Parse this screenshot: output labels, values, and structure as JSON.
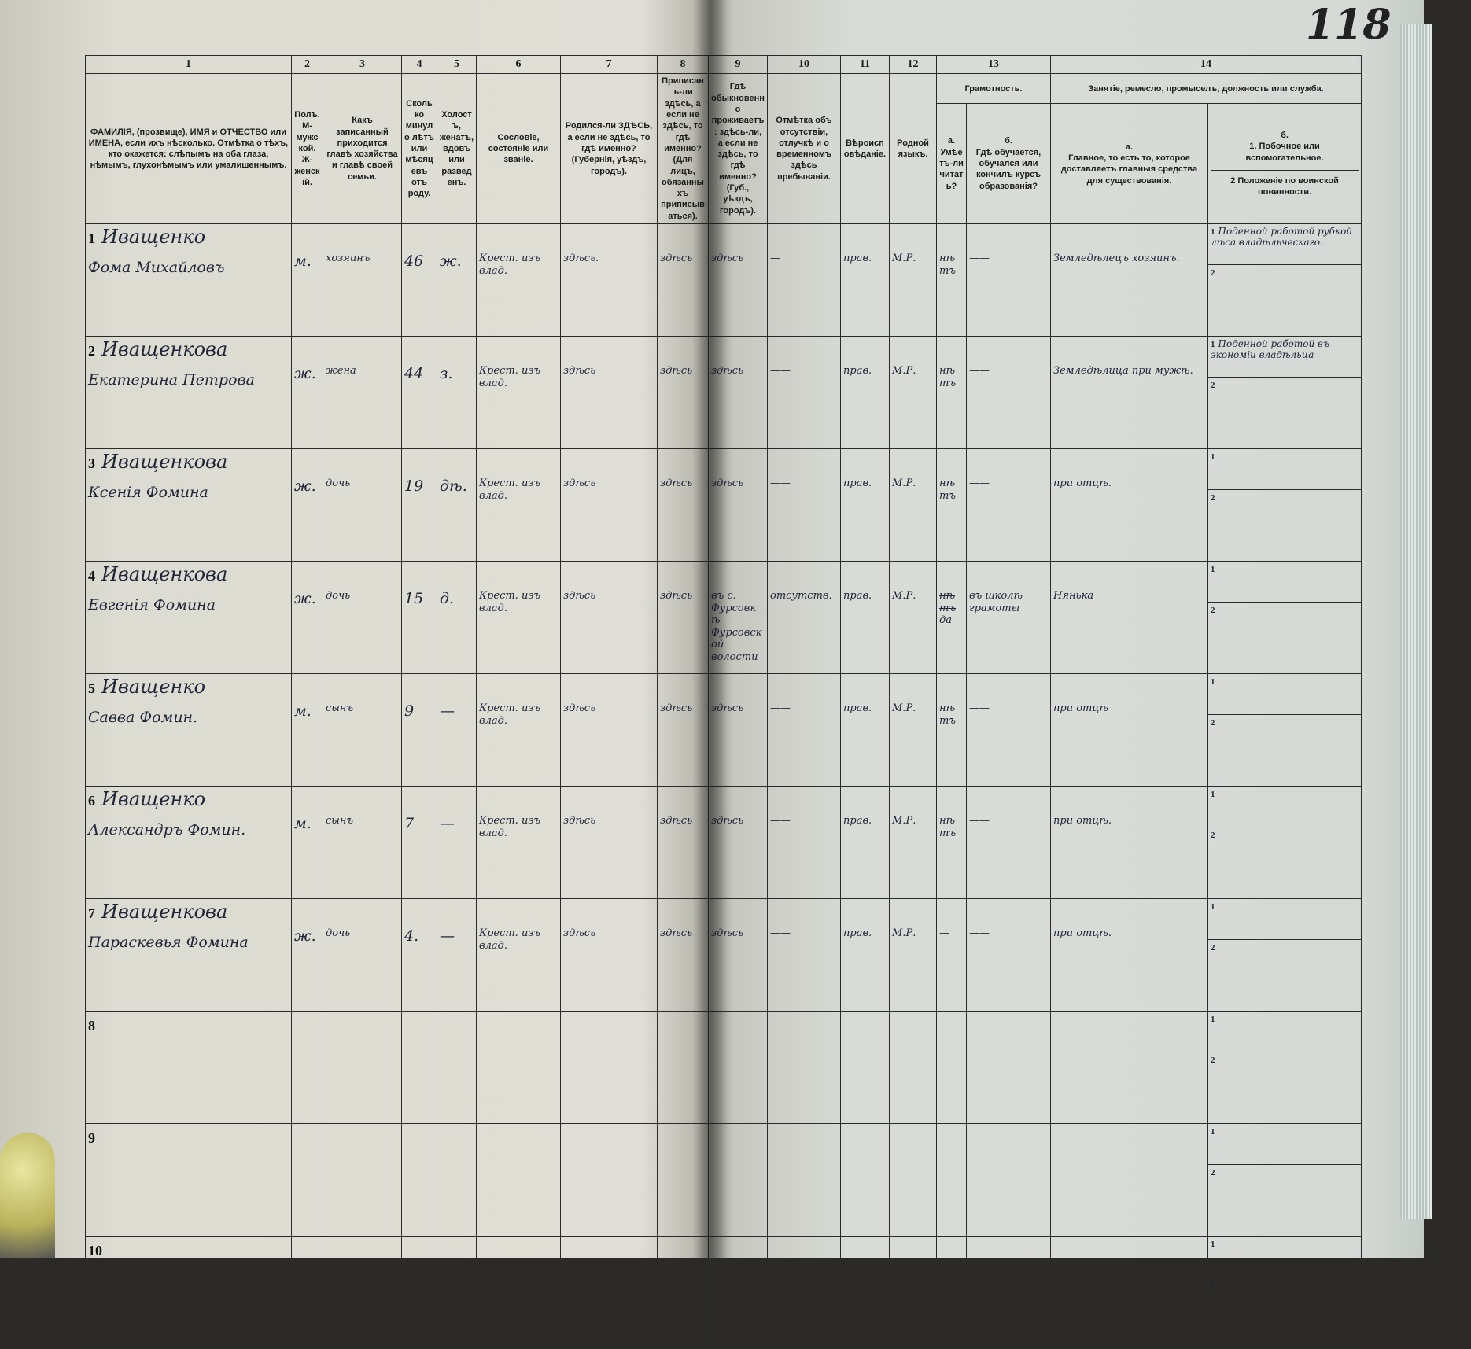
{
  "page_number": "118",
  "colors": {
    "paper": "#deded6",
    "ink": "#20263a",
    "print": "#1d1d1d"
  },
  "columns": [
    {
      "num": "1",
      "label": "ФАМИЛІЯ, (прозвище), ИМЯ и ОТЧЕСТВО или ИМЕНА, если ихъ нѣсколько. Отмѣтка о тѣхъ, кто окажется: слѣпымъ на оба глаза, нѣмымъ, глухонѣмымъ или умалишеннымъ."
    },
    {
      "num": "2",
      "label": "Полъ. М-мужской. Ж-женскій."
    },
    {
      "num": "3",
      "label": "Какъ записанный приходится главѣ хозяйства и главѣ своей семьи."
    },
    {
      "num": "4",
      "label": "Сколько минуло лѣтъ или мѣсяцевъ отъ роду."
    },
    {
      "num": "5",
      "label": "Холостъ, женатъ, вдовъ или разведенъ."
    },
    {
      "num": "6",
      "label": "Сословіе, состояніе или званіе."
    },
    {
      "num": "7",
      "label": "Родился-ли ЗДѢСЬ, а если не здѣсь, то гдѣ именно? (Губернія, уѣздъ, городъ)."
    },
    {
      "num": "8",
      "label": "Приписанъ-ли здѣсь, а если не здѣсь, то гдѣ именно? (Для лицъ, обязанныхъ приписываться)."
    },
    {
      "num": "9",
      "label": "Гдѣ обыкновенно проживаетъ: здѣсь-ли, а если не здѣсь, то гдѣ именно? (Губ., уѣздъ, городъ)."
    },
    {
      "num": "10",
      "label": "Отмѣтка объ отсутствіи, отлучкѣ и о временномъ здѣсь пребываніи."
    },
    {
      "num": "11",
      "label": "Вѣроисповѣданіе."
    },
    {
      "num": "12",
      "label": "Родной языкъ."
    },
    {
      "num": "13",
      "label": "Грамотность.",
      "sub": [
        {
          "num": "а.",
          "label": "Умѣетъ-ли читать?"
        },
        {
          "num": "б.",
          "label": "Гдѣ обучается, обучался или кончилъ курсъ образованія?"
        }
      ]
    },
    {
      "num": "14",
      "label": "Занятіе, ремесло, промыселъ, должность или служба.",
      "sub": [
        {
          "num": "а.",
          "label": "Главное, то есть то, которое доставляетъ главныя средства для существованія."
        },
        {
          "num": "б.",
          "label": "1. Побочное или вспомогательное.",
          "label2": "2 Положеніе по воинской повинности."
        }
      ]
    }
  ],
  "rows": [
    {
      "n": "1",
      "surname": "Иващенко",
      "name": "Фома Михайловъ",
      "sex": "м.",
      "relation": "хозяинъ",
      "age": "46",
      "marital": "ж.",
      "estate": "Крест. изъ влад.",
      "born": "здѣсь.",
      "registered": "здѣсь",
      "residence": "здѣсь",
      "absence": "—",
      "religion": "прав.",
      "language": "М.Р.",
      "literate": "нѣтъ",
      "school": "——",
      "occupation": "Земледѣлецъ хозяинъ.",
      "side1": "Поденной работой рубкой лѣса владѣльческаго.",
      "side2": ""
    },
    {
      "n": "2",
      "surname": "Иващенкова",
      "name": "Екатерина Петрова",
      "sex": "ж.",
      "relation": "жена",
      "age": "44",
      "marital": "з.",
      "estate": "Крест. изъ влад.",
      "born": "здѣсь",
      "registered": "здѣсь",
      "residence": "здѣсь",
      "absence": "——",
      "religion": "прав.",
      "language": "М.Р.",
      "literate": "нѣтъ",
      "school": "——",
      "occupation": "Земледѣлица при мужѣ.",
      "side1": "Поденной работой въ экономіи владѣльца",
      "side2": ""
    },
    {
      "n": "3",
      "surname": "Иващенкова",
      "name": "Ксенія Фомина",
      "sex": "ж.",
      "relation": "дочь",
      "age": "19",
      "marital": "дѣ.",
      "estate": "Крест. изъ влад.",
      "born": "здѣсь",
      "registered": "здѣсь",
      "residence": "здѣсь",
      "absence": "——",
      "religion": "прав.",
      "language": "М.Р.",
      "literate": "нѣтъ",
      "school": "——",
      "occupation": "при отцѣ.",
      "side1": "",
      "side2": ""
    },
    {
      "n": "4",
      "surname": "Иващенкова",
      "name": "Евгенія Фомина",
      "sex": "ж.",
      "relation": "дочь",
      "age": "15",
      "marital": "д.",
      "estate": "Крест. изъ влад.",
      "born": "здѣсь",
      "registered": "здѣсь",
      "residence": "въ с. Фурсовкѣ Фурсовской волости",
      "absence": "отсутств.",
      "religion": "прав.",
      "language": "М.Р.",
      "literate_struck": "нѣтъ",
      "literate": "да",
      "school": "въ школѣ грамоты",
      "occupation": "Нянька",
      "side1": "",
      "side2": ""
    },
    {
      "n": "5",
      "surname": "Иващенко",
      "name": "Савва Фомин.",
      "sex": "м.",
      "relation": "сынъ",
      "age": "9",
      "marital": "—",
      "estate": "Крест. изъ влад.",
      "born": "здѣсь",
      "registered": "здѣсь",
      "residence": "здѣсь",
      "absence": "——",
      "religion": "прав.",
      "language": "М.Р.",
      "literate": "нѣтъ",
      "school": "——",
      "occupation": "при отцѣ",
      "side1": "",
      "side2": ""
    },
    {
      "n": "6",
      "surname": "Иващенко",
      "name": "Александръ Фомин.",
      "sex": "м.",
      "relation": "сынъ",
      "age": "7",
      "marital": "—",
      "estate": "Крест. изъ влад.",
      "born": "здѣсь",
      "registered": "здѣсь",
      "residence": "здѣсь",
      "absence": "——",
      "religion": "прав.",
      "language": "М.Р.",
      "literate": "нѣтъ",
      "school": "——",
      "occupation": "при отцѣ.",
      "side1": "",
      "side2": ""
    },
    {
      "n": "7",
      "surname": "Иващенкова",
      "name": "Параскевья Фомина",
      "sex": "ж.",
      "relation": "дочь",
      "age": "4.",
      "marital": "—",
      "estate": "Крест. изъ влад.",
      "born": "здѣсь",
      "registered": "здѣсь",
      "residence": "здѣсь",
      "absence": "——",
      "religion": "прав.",
      "language": "М.Р.",
      "literate": "—",
      "school": "——",
      "occupation": "при отцѣ.",
      "side1": "",
      "side2": ""
    },
    {
      "n": "8"
    },
    {
      "n": "9"
    },
    {
      "n": "10"
    }
  ],
  "sub_labels": {
    "one": "1",
    "two": "2"
  }
}
